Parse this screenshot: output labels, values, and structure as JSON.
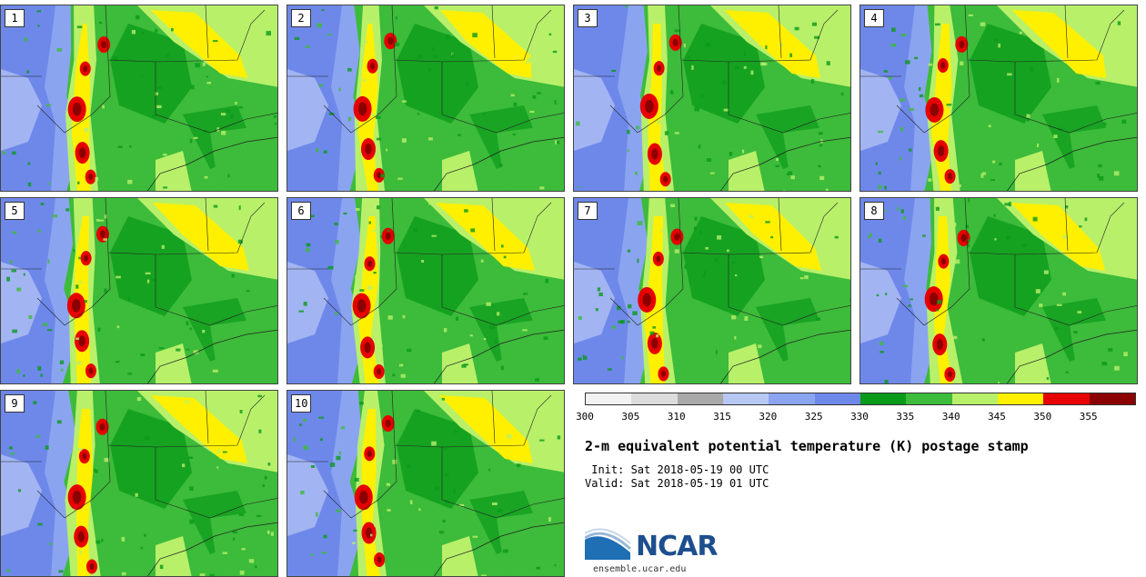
{
  "panels": [
    {
      "label": "1",
      "variant": 0
    },
    {
      "label": "2",
      "variant": 1
    },
    {
      "label": "3",
      "variant": 2
    },
    {
      "label": "4",
      "variant": 3
    },
    {
      "label": "5",
      "variant": 4
    },
    {
      "label": "6",
      "variant": 5
    },
    {
      "label": "7",
      "variant": 6
    },
    {
      "label": "8",
      "variant": 7
    },
    {
      "label": "9",
      "variant": 8
    },
    {
      "label": "10",
      "variant": 9
    }
  ],
  "colorbar": {
    "ticks": [
      "300",
      "305",
      "310",
      "315",
      "320",
      "325",
      "330",
      "335",
      "340",
      "345",
      "350",
      "355"
    ],
    "colors": [
      "#f2f2f2",
      "#dcdcdc",
      "#a9a9a9",
      "#b8c8f5",
      "#8ba4f0",
      "#6e88ea",
      "#0a9a1a",
      "#3dbb3a",
      "#b8f06a",
      "#fff000",
      "#e60000",
      "#8b0000"
    ]
  },
  "title": "2-m equivalent potential temperature (K) postage stamp",
  "init": " Init: Sat 2018-05-19 00 UTC",
  "valid": "Valid: Sat 2018-05-19 01 UTC",
  "logo": {
    "text": "NCAR"
  },
  "website": "ensemble.ucar.edu"
}
